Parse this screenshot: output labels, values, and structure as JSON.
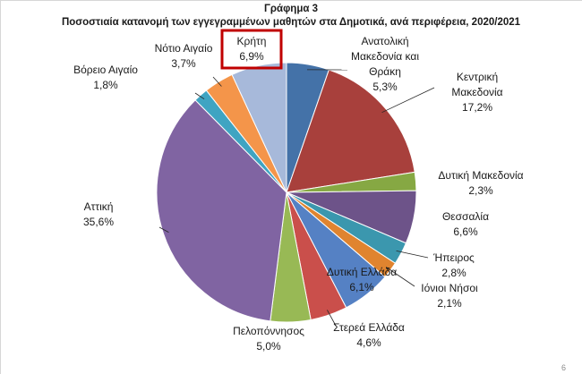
{
  "header": {
    "title": "Γράφημα 3",
    "subtitle": "Ποσοστιαία κατανομή των εγγεγραμμένων μαθητών στα Δημοτικά, ανά περιφέρεια, 2020/2021"
  },
  "page_number": "6",
  "chart_data": {
    "type": "pie",
    "title": "Γράφημα 3",
    "subtitle": "Ποσοστιαία κατανομή των εγγεγραμμένων μαθητών στα Δημοτικά, ανά περιφέρεια, 2020/2021",
    "unit": "%",
    "highlighted": "Κρήτη",
    "slices": [
      {
        "name": "Ανατολική Μακεδονία και Θράκη",
        "label_lines": [
          "Ανατολική",
          "Μακεδονία και",
          "Θράκη"
        ],
        "value": 5.3,
        "value_label": "5,3%",
        "color": "#4472a8"
      },
      {
        "name": "Κεντρική Μακεδονία",
        "label_lines": [
          "Κεντρική",
          "Μακεδονία"
        ],
        "value": 17.2,
        "value_label": "17,2%",
        "color": "#a8403c"
      },
      {
        "name": "Δυτική Μακεδονία",
        "label_lines": [
          "Δυτική Μακεδονία"
        ],
        "value": 2.3,
        "value_label": "2,3%",
        "color": "#86a843"
      },
      {
        "name": "Θεσσαλία",
        "label_lines": [
          "Θεσσαλία"
        ],
        "value": 6.6,
        "value_label": "6,6%",
        "color": "#6d5389"
      },
      {
        "name": "Ήπειρος",
        "label_lines": [
          "Ήπειρος"
        ],
        "value": 2.8,
        "value_label": "2,8%",
        "color": "#3b97ae"
      },
      {
        "name": "Ιόνιοι Νήσοι",
        "label_lines": [
          "Ιόνιοι Νήσοι"
        ],
        "value": 2.1,
        "value_label": "2,1%",
        "color": "#e0842f"
      },
      {
        "name": "Δυτική Ελλάδα",
        "label_lines": [
          "Δυτική Ελλάδα"
        ],
        "value": 6.1,
        "value_label": "6,1%",
        "color": "#5581c4"
      },
      {
        "name": "Στερεά Ελλάδα",
        "label_lines": [
          "Στερεά Ελλάδα"
        ],
        "value": 4.6,
        "value_label": "4,6%",
        "color": "#ca4f4b"
      },
      {
        "name": "Πελοπόννησος",
        "label_lines": [
          "Πελοπόννησος"
        ],
        "value": 5.0,
        "value_label": "5,0%",
        "color": "#98b955"
      },
      {
        "name": "Αττική",
        "label_lines": [
          "Αττική"
        ],
        "value": 35.6,
        "value_label": "35,6%",
        "color": "#8064a2"
      },
      {
        "name": "Βόρειο Αιγαίο",
        "label_lines": [
          "Βόρειο Αιγαίο"
        ],
        "value": 1.8,
        "value_label": "1,8%",
        "color": "#3fa4c2"
      },
      {
        "name": "Νότιο Αιγαίο",
        "label_lines": [
          "Νότιο Αιγαίο"
        ],
        "value": 3.7,
        "value_label": "3,7%",
        "color": "#f4954a"
      },
      {
        "name": "Κρήτη",
        "label_lines": [
          "Κρήτη"
        ],
        "value": 6.9,
        "value_label": "6,9%",
        "color": "#a7b9da"
      }
    ]
  }
}
